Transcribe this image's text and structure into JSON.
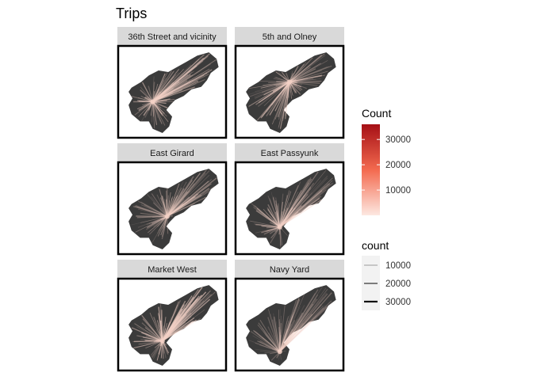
{
  "chart_data": {
    "type": "map",
    "title": "Trips",
    "facets": [
      {
        "label": "36th Street and vicinity",
        "origin": [
          0.3,
          0.62
        ],
        "intensity": 0.85
      },
      {
        "label": "5th and Olney",
        "origin": [
          0.5,
          0.38
        ],
        "intensity": 0.8
      },
      {
        "label": "East Girard",
        "origin": [
          0.45,
          0.6
        ],
        "intensity": 0.7
      },
      {
        "label": "East Passyunk",
        "origin": [
          0.4,
          0.73
        ],
        "intensity": 0.7
      },
      {
        "label": "Market West",
        "origin": [
          0.4,
          0.7
        ],
        "intensity": 0.9
      },
      {
        "label": "Navy Yard",
        "origin": [
          0.4,
          0.83
        ],
        "intensity": 0.45
      }
    ],
    "fill_legend": {
      "title": "Count",
      "breaks": [
        10000,
        20000,
        30000
      ],
      "range": [
        0,
        36000
      ],
      "low_color": "#fde8e1",
      "high_color": "#a50f15"
    },
    "size_legend": {
      "title": "count",
      "breaks": [
        10000,
        20000,
        30000
      ],
      "labels": [
        "10000",
        "20000",
        "30000"
      ],
      "colors": [
        "#999999",
        "#555555",
        "#111111"
      ]
    },
    "colors": {
      "map_fill": "#3b3b3b",
      "panel_border": "#000000",
      "strip_fill": "#d9d9d9",
      "ray_color": "#f3d1c6"
    }
  }
}
